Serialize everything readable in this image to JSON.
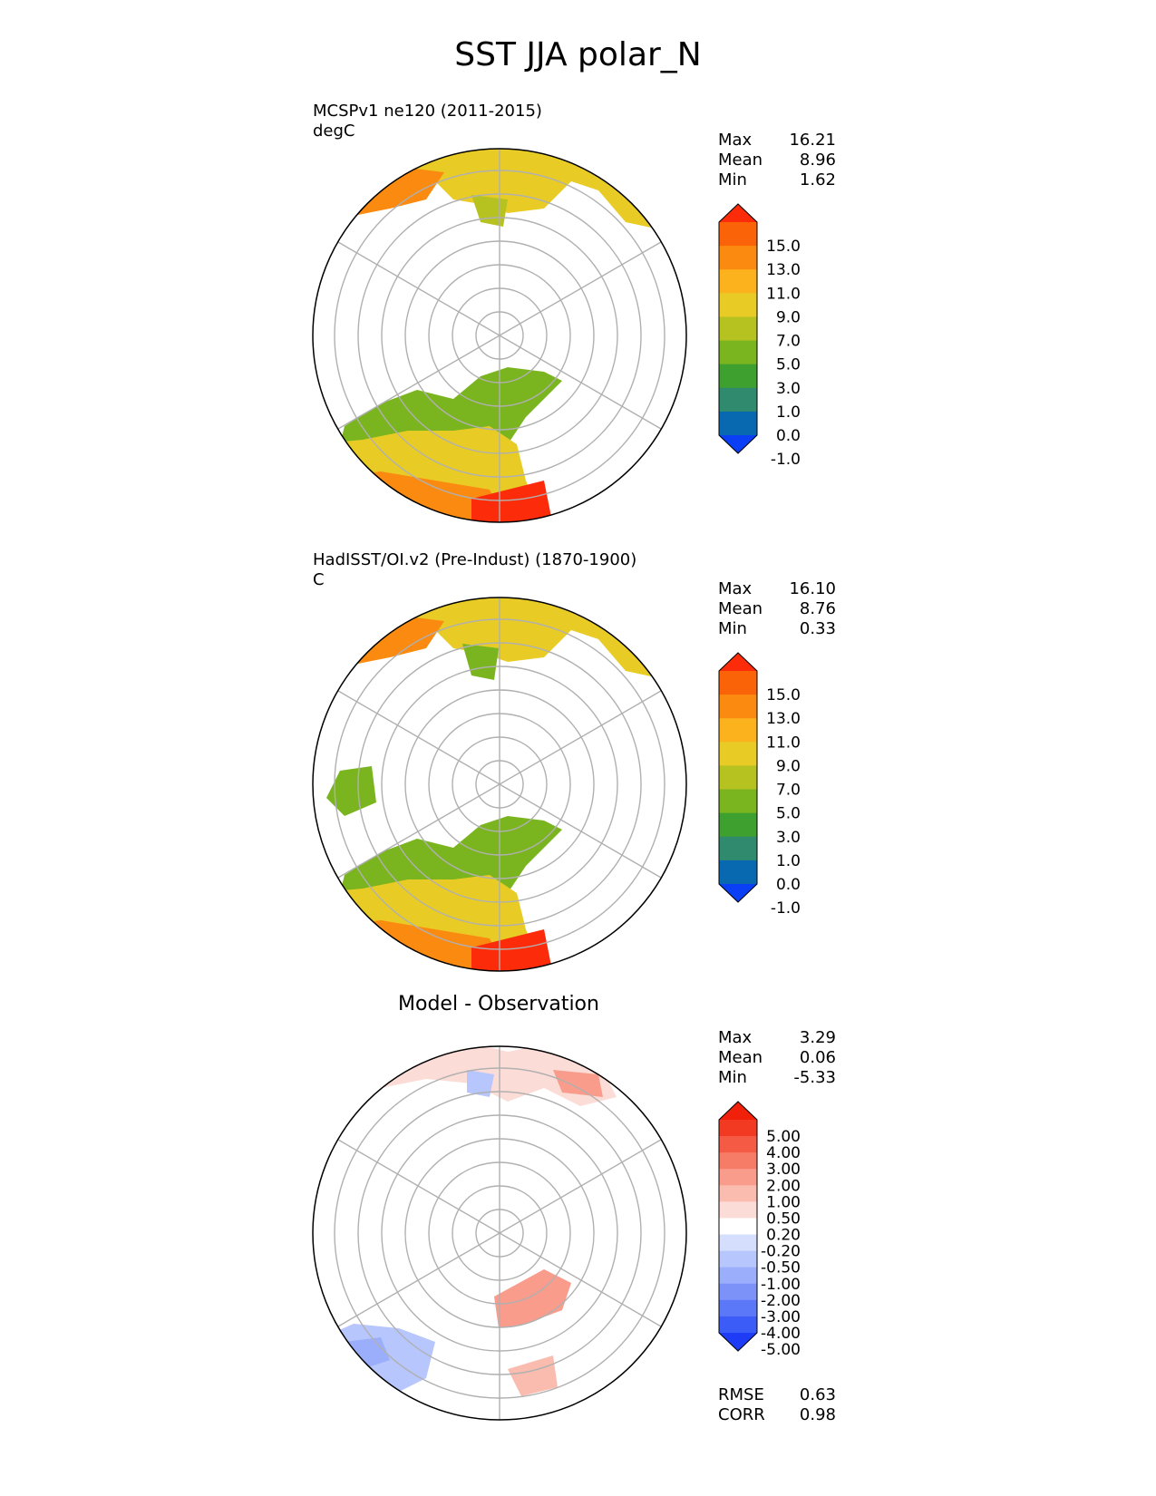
{
  "title": "SST JJA polar_N",
  "colors": {
    "sst_levels": [
      "#0a3ff5",
      "#0868b0",
      "#2f8a6e",
      "#3da02f",
      "#7ab520",
      "#b5c220",
      "#e8cc25",
      "#fbb21d",
      "#fb8a10",
      "#fb6308",
      "#fc2c0a"
    ],
    "diff_levels": [
      "#1e3cf5",
      "#3b5cf7",
      "#5a78f8",
      "#7c92f9",
      "#9aaefb",
      "#b7c6fc",
      "#d6defd",
      "#ffffff",
      "#fcdcd6",
      "#fbbcb0",
      "#f99c8c",
      "#f77c68",
      "#f55a45",
      "#f23a22",
      "#f0200a"
    ]
  },
  "chart_data": [
    {
      "type": "heatmap",
      "projection": "north-polar-stereographic",
      "title": "MCSPv1 ne120 (2011-2015)",
      "units": "degC",
      "stats": [
        {
          "label": "Max",
          "value": "16.21"
        },
        {
          "label": "Mean",
          "value": "8.96"
        },
        {
          "label": "Min",
          "value": "1.62"
        }
      ],
      "colorbar_ticks": [
        "15.0",
        "13.0",
        "11.0",
        "9.0",
        "7.0",
        "5.0",
        "3.0",
        "1.0",
        "0.0",
        "-1.0"
      ],
      "colorbar": "sst_levels"
    },
    {
      "type": "heatmap",
      "projection": "north-polar-stereographic",
      "title": "HadISST/OI.v2 (Pre-Indust) (1870-1900)",
      "units": "C",
      "stats": [
        {
          "label": "Max",
          "value": "16.10"
        },
        {
          "label": "Mean",
          "value": "8.76"
        },
        {
          "label": "Min",
          "value": "0.33"
        }
      ],
      "colorbar_ticks": [
        "15.0",
        "13.0",
        "11.0",
        "9.0",
        "7.0",
        "5.0",
        "3.0",
        "1.0",
        "0.0",
        "-1.0"
      ],
      "colorbar": "sst_levels"
    },
    {
      "type": "heatmap",
      "projection": "north-polar-stereographic",
      "title": "Model - Observation",
      "stats": [
        {
          "label": "Max",
          "value": "3.29"
        },
        {
          "label": "Mean",
          "value": "0.06"
        },
        {
          "label": "Min",
          "value": "-5.33"
        }
      ],
      "colorbar_ticks": [
        "5.00",
        "4.00",
        "3.00",
        "2.00",
        "1.00",
        "0.50",
        "0.20",
        "-0.20",
        "-0.50",
        "-1.00",
        "-2.00",
        "-3.00",
        "-4.00",
        "-5.00"
      ],
      "colorbar": "diff_levels",
      "metrics": [
        {
          "label": "RMSE",
          "value": "0.63"
        },
        {
          "label": "CORR",
          "value": "0.98"
        }
      ]
    }
  ]
}
